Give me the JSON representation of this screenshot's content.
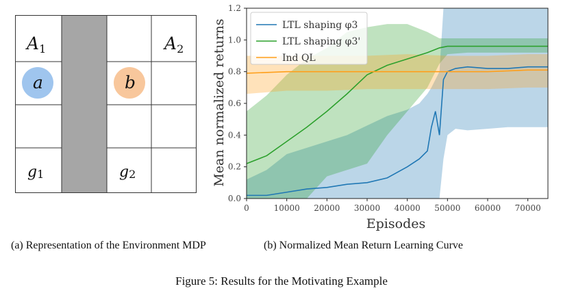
{
  "gridworld": {
    "cells": {
      "A1": {
        "text": "A",
        "sub": "1"
      },
      "A2": {
        "text": "A",
        "sub": "2"
      },
      "a": "a",
      "b": "b",
      "g1": {
        "text": "g",
        "sub": "1"
      },
      "g2": {
        "text": "g",
        "sub": "2"
      }
    },
    "colors": {
      "wall": "#a6a6a6",
      "agent_a": "#9fc5ee",
      "agent_b": "#f8c79c",
      "lines": "#333333"
    }
  },
  "captions": {
    "a": "(a) Representation of the Environment MDP",
    "b": "(b) Normalized Mean Return Learning Curve",
    "figure": "Figure 5: Results for the Motivating Example"
  },
  "chart_data": {
    "type": "line",
    "xlabel": "Episodes",
    "ylabel": "Mean normalized returns",
    "xlim": [
      0,
      75000
    ],
    "ylim": [
      0.0,
      1.2
    ],
    "xticks": [
      "0",
      "10000",
      "20000",
      "30000",
      "40000",
      "50000",
      "60000",
      "70000"
    ],
    "yticks": [
      "0.0",
      "0.2",
      "0.4",
      "0.6",
      "0.8",
      "1.0",
      "1.2"
    ],
    "legend_position": "top-left",
    "series": [
      {
        "name": "LTL shaping φ3",
        "color": "#1f77b4",
        "x": [
          0,
          5000,
          10000,
          15000,
          20000,
          25000,
          30000,
          35000,
          40000,
          43000,
          45000,
          46000,
          47000,
          48000,
          49000,
          50000,
          52000,
          55000,
          60000,
          65000,
          70000,
          75000
        ],
        "values": [
          0.02,
          0.02,
          0.04,
          0.06,
          0.07,
          0.09,
          0.1,
          0.13,
          0.2,
          0.25,
          0.3,
          0.45,
          0.55,
          0.4,
          0.75,
          0.8,
          0.82,
          0.83,
          0.82,
          0.82,
          0.83,
          0.83
        ],
        "band_low": [
          0.0,
          0.0,
          0.0,
          0.0,
          0.0,
          0.0,
          0.0,
          0.0,
          0.0,
          0.0,
          0.0,
          0.0,
          0.0,
          0.0,
          0.25,
          0.4,
          0.44,
          0.43,
          0.44,
          0.45,
          0.45,
          0.45
        ],
        "band_high": [
          0.12,
          0.18,
          0.28,
          0.32,
          0.36,
          0.4,
          0.46,
          0.52,
          0.56,
          0.6,
          0.66,
          0.7,
          0.75,
          0.8,
          1.2,
          1.2,
          1.2,
          1.2,
          1.2,
          1.2,
          1.2,
          1.2
        ]
      },
      {
        "name": "LTL shaping φ3'",
        "color": "#2ca02c",
        "x": [
          0,
          5000,
          10000,
          15000,
          20000,
          25000,
          30000,
          35000,
          40000,
          45000,
          48000,
          50000,
          55000,
          60000,
          65000,
          70000,
          75000
        ],
        "values": [
          0.22,
          0.27,
          0.36,
          0.45,
          0.55,
          0.66,
          0.78,
          0.84,
          0.88,
          0.92,
          0.95,
          0.96,
          0.96,
          0.96,
          0.96,
          0.96,
          0.96
        ],
        "band_low": [
          0.0,
          0.0,
          0.0,
          0.0,
          0.14,
          0.18,
          0.22,
          0.4,
          0.55,
          0.7,
          0.85,
          0.91,
          0.92,
          0.92,
          0.92,
          0.92,
          0.92
        ],
        "band_high": [
          0.55,
          0.65,
          0.78,
          0.88,
          0.95,
          1.05,
          1.08,
          1.1,
          1.1,
          1.05,
          1.01,
          1.01,
          1.01,
          1.01,
          1.01,
          1.01,
          1.01
        ]
      },
      {
        "name": "Ind QL",
        "color": "#ff9f1a",
        "x": [
          0,
          10000,
          20000,
          30000,
          40000,
          50000,
          60000,
          70000,
          75000
        ],
        "values": [
          0.79,
          0.8,
          0.8,
          0.8,
          0.8,
          0.8,
          0.8,
          0.81,
          0.81
        ],
        "band_low": [
          0.66,
          0.68,
          0.68,
          0.69,
          0.69,
          0.69,
          0.69,
          0.7,
          0.7
        ],
        "band_high": [
          0.9,
          0.9,
          0.9,
          0.9,
          0.91,
          0.9,
          0.9,
          0.91,
          0.91
        ]
      }
    ]
  }
}
